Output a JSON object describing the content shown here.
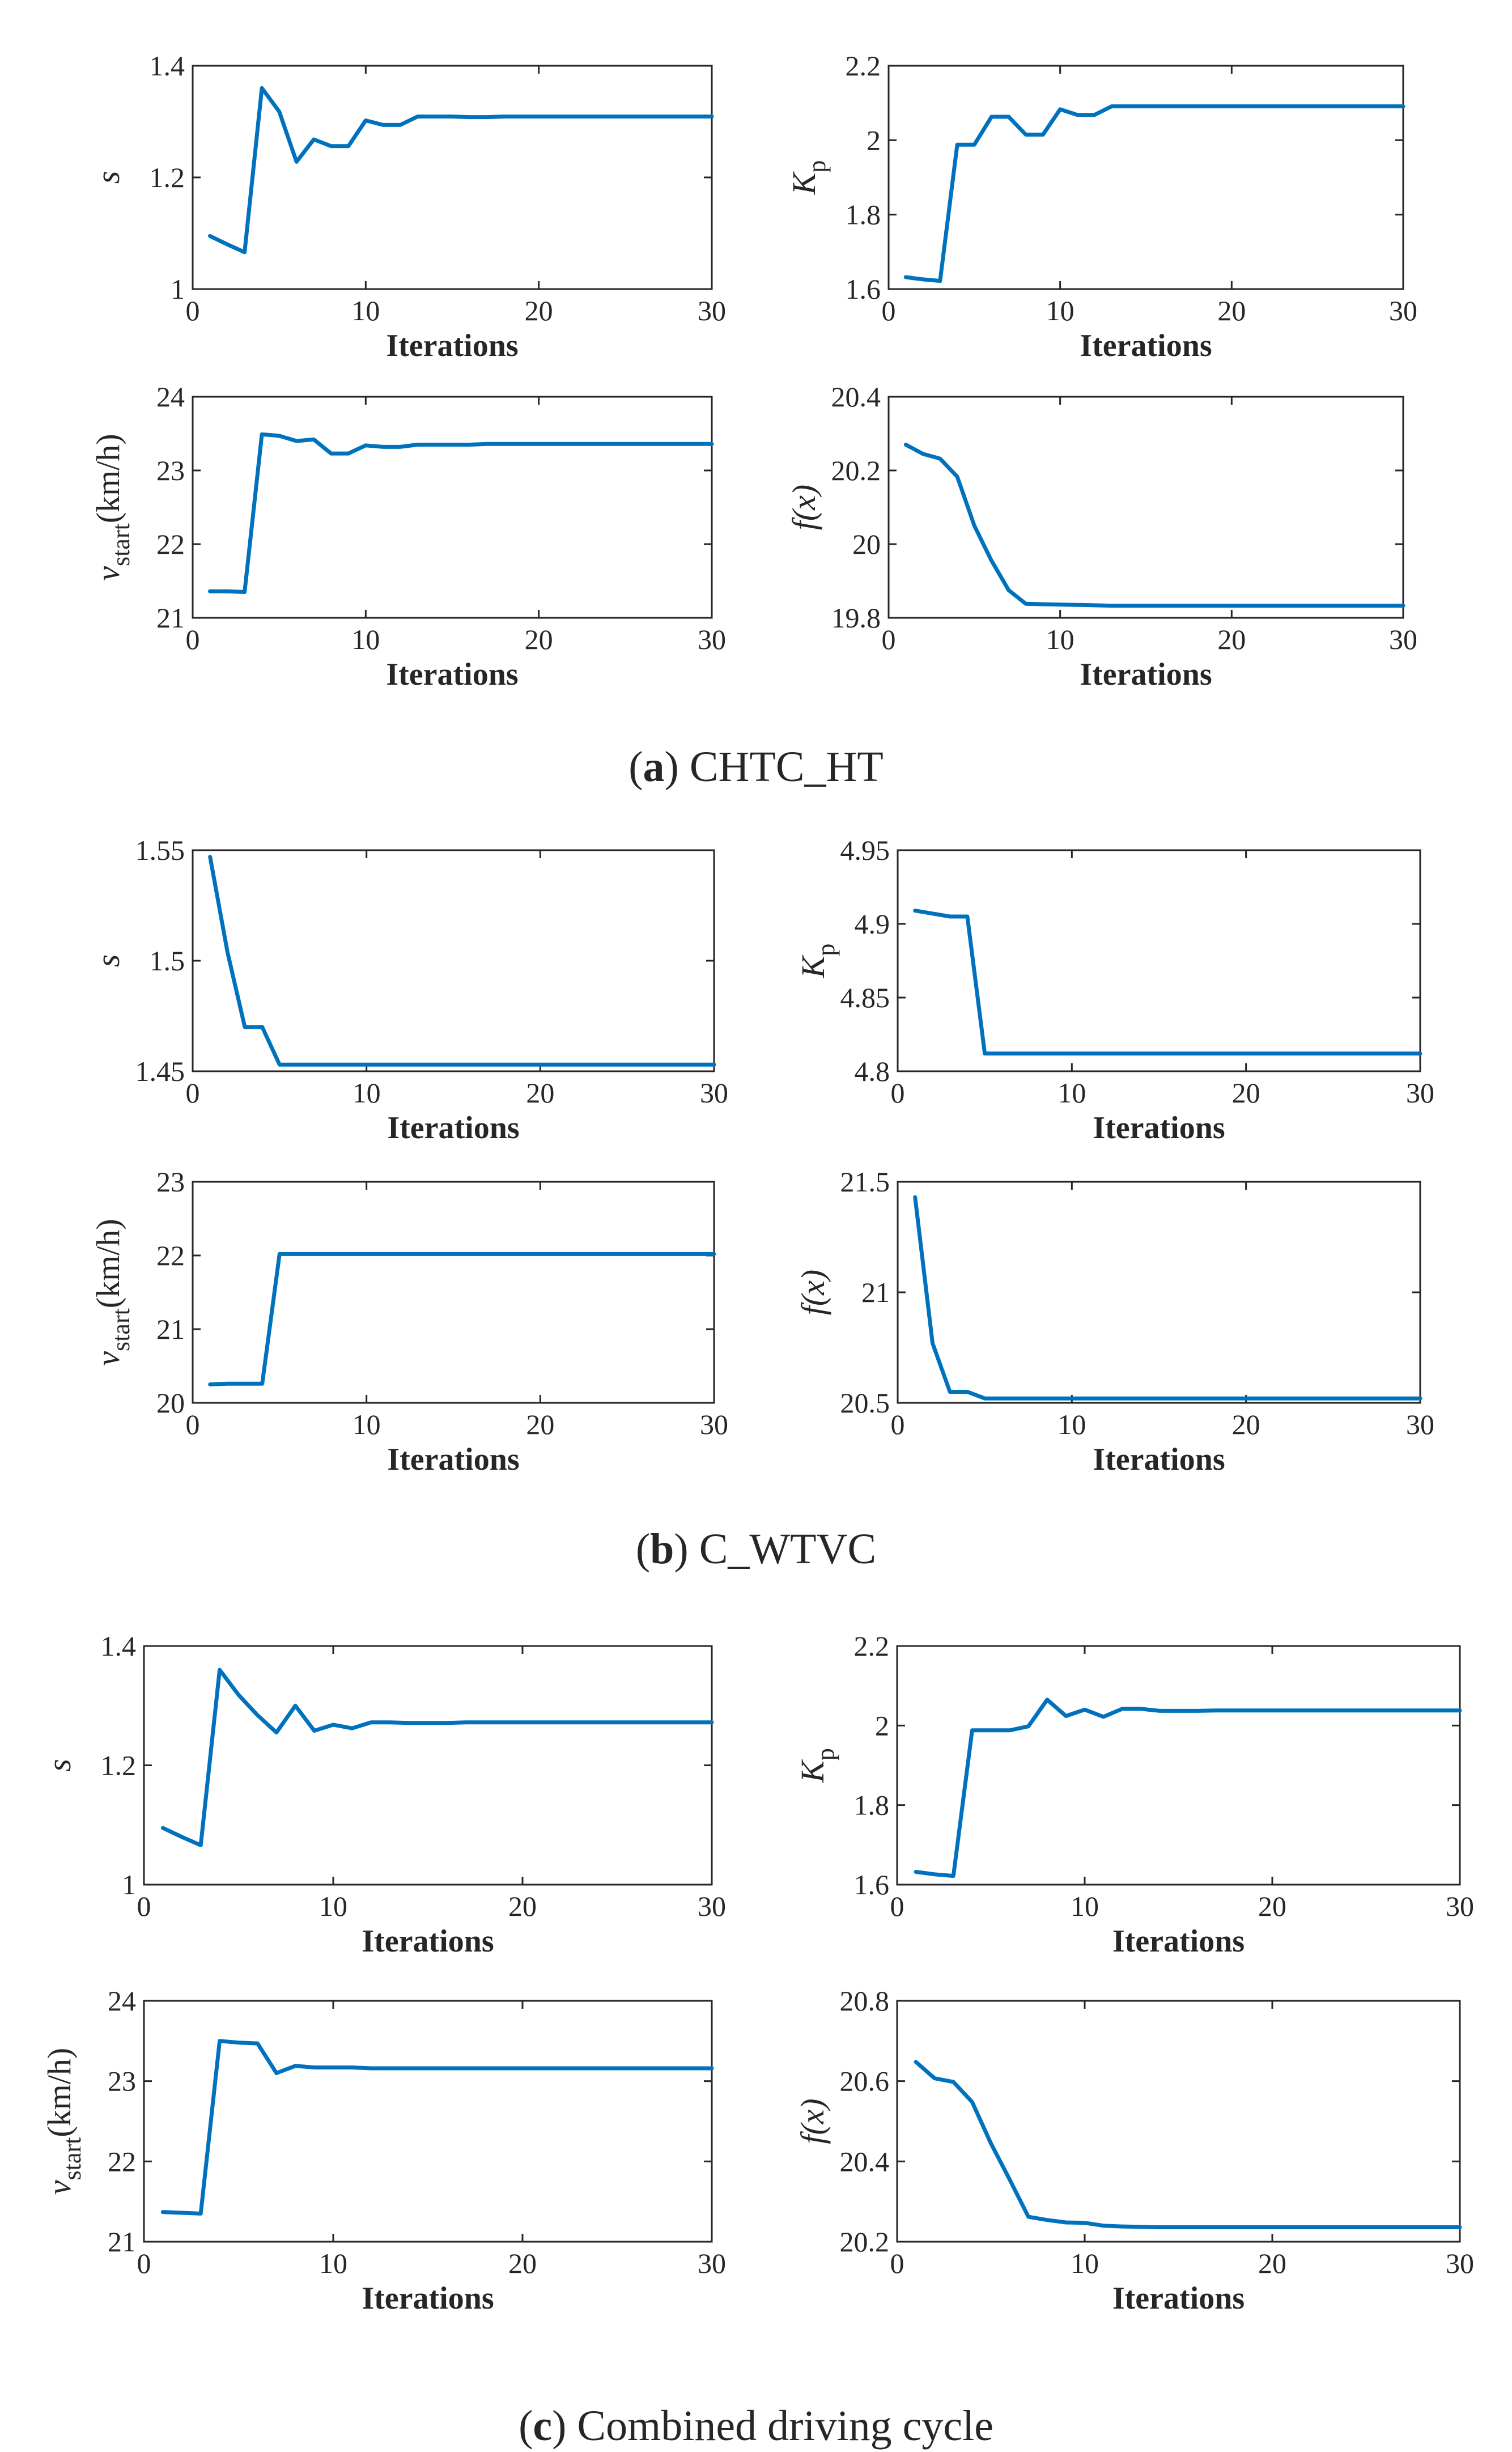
{
  "style": {
    "line_color": "#0072BD",
    "axis_color": "#262626"
  },
  "panels": [
    {
      "caption_letter": "a",
      "caption_rest": " CHTC_HT"
    },
    {
      "caption_letter": "b",
      "caption_rest": " C_WTVC"
    },
    {
      "caption_letter": "c",
      "caption_rest": " Combined driving cycle"
    }
  ],
  "chart_data": [
    {
      "type": "line",
      "panel": "a",
      "position": "top-left",
      "ylabel_parts": {
        "main": "s"
      },
      "xlabel": "Iterations",
      "xlim": [
        0,
        30
      ],
      "ylim": [
        1,
        1.4
      ],
      "xticks": [
        0,
        10,
        20,
        30
      ],
      "yticks": [
        1,
        1.2,
        1.4
      ],
      "ytick_labels": [
        "1",
        "1.2",
        "1.4"
      ],
      "x": [
        1,
        2,
        3,
        4,
        5,
        6,
        7,
        8,
        9,
        10,
        11,
        12,
        13,
        14,
        15,
        16,
        17,
        18,
        19,
        20,
        21,
        22,
        23,
        24,
        25,
        26,
        27,
        28,
        29,
        30
      ],
      "values": [
        1.095,
        1.08,
        1.066,
        1.36,
        1.318,
        1.228,
        1.268,
        1.256,
        1.256,
        1.302,
        1.294,
        1.294,
        1.309,
        1.309,
        1.309,
        1.308,
        1.308,
        1.309,
        1.309,
        1.309,
        1.309,
        1.309,
        1.309,
        1.309,
        1.309,
        1.309,
        1.309,
        1.309,
        1.309,
        1.309
      ]
    },
    {
      "type": "line",
      "panel": "a",
      "position": "top-right",
      "ylabel_parts": {
        "main": "K",
        "sub": "p"
      },
      "xlabel": "Iterations",
      "xlim": [
        0,
        30
      ],
      "ylim": [
        1.6,
        2.2
      ],
      "xticks": [
        0,
        10,
        20,
        30
      ],
      "yticks": [
        1.6,
        1.8,
        2,
        2.2
      ],
      "ytick_labels": [
        "1.6",
        "1.8",
        "2",
        "2.2"
      ],
      "x": [
        1,
        2,
        3,
        4,
        5,
        6,
        7,
        8,
        9,
        10,
        11,
        12,
        13,
        14,
        15,
        16,
        17,
        18,
        19,
        20,
        21,
        22,
        23,
        24,
        25,
        26,
        27,
        28,
        29,
        30
      ],
      "values": [
        1.632,
        1.626,
        1.622,
        1.988,
        1.988,
        2.063,
        2.063,
        2.015,
        2.015,
        2.083,
        2.068,
        2.068,
        2.091,
        2.091,
        2.091,
        2.091,
        2.091,
        2.091,
        2.091,
        2.091,
        2.091,
        2.091,
        2.091,
        2.091,
        2.091,
        2.091,
        2.091,
        2.091,
        2.091,
        2.091
      ]
    },
    {
      "type": "line",
      "panel": "a",
      "position": "bottom-left",
      "ylabel_parts": {
        "main": "v",
        "sub": "start",
        "unit": "(km/h)"
      },
      "xlabel": "Iterations",
      "xlim": [
        0,
        30
      ],
      "ylim": [
        21,
        24
      ],
      "xticks": [
        0,
        10,
        20,
        30
      ],
      "yticks": [
        21,
        22,
        23,
        24
      ],
      "ytick_labels": [
        "21",
        "22",
        "23",
        "24"
      ],
      "x": [
        1,
        2,
        3,
        4,
        5,
        6,
        7,
        8,
        9,
        10,
        11,
        12,
        13,
        14,
        15,
        16,
        17,
        18,
        19,
        20,
        21,
        22,
        23,
        24,
        25,
        26,
        27,
        28,
        29,
        30
      ],
      "values": [
        21.36,
        21.36,
        21.35,
        23.49,
        23.47,
        23.4,
        23.42,
        23.23,
        23.23,
        23.34,
        23.32,
        23.32,
        23.35,
        23.35,
        23.35,
        23.35,
        23.36,
        23.36,
        23.36,
        23.36,
        23.36,
        23.36,
        23.36,
        23.36,
        23.36,
        23.36,
        23.36,
        23.36,
        23.36,
        23.36
      ]
    },
    {
      "type": "line",
      "panel": "a",
      "position": "bottom-right",
      "ylabel_parts": {
        "main": "f(x)"
      },
      "xlabel": "Iterations",
      "xlim": [
        0,
        30
      ],
      "ylim": [
        19.8,
        20.4
      ],
      "xticks": [
        0,
        10,
        20,
        30
      ],
      "yticks": [
        19.8,
        20,
        20.2,
        20.4
      ],
      "ytick_labels": [
        "19.8",
        "20",
        "20.2",
        "20.4"
      ],
      "x": [
        1,
        2,
        3,
        4,
        5,
        6,
        7,
        8,
        9,
        10,
        11,
        12,
        13,
        14,
        15,
        16,
        17,
        18,
        19,
        20,
        21,
        22,
        23,
        24,
        25,
        26,
        27,
        28,
        29,
        30
      ],
      "values": [
        20.27,
        20.245,
        20.232,
        20.183,
        20.05,
        19.955,
        19.875,
        19.838,
        19.837,
        19.836,
        19.835,
        19.834,
        19.833,
        19.833,
        19.833,
        19.833,
        19.833,
        19.833,
        19.833,
        19.833,
        19.833,
        19.833,
        19.833,
        19.833,
        19.833,
        19.833,
        19.833,
        19.833,
        19.833,
        19.833
      ]
    },
    {
      "type": "line",
      "panel": "b",
      "position": "top-left",
      "ylabel_parts": {
        "main": "s"
      },
      "xlabel": "Iterations",
      "xlim": [
        0,
        30
      ],
      "ylim": [
        1.45,
        1.55
      ],
      "xticks": [
        0,
        10,
        20,
        30
      ],
      "yticks": [
        1.45,
        1.5,
        1.55
      ],
      "ytick_labels": [
        "1.45",
        "1.5",
        "1.55"
      ],
      "x": [
        1,
        2,
        3,
        4,
        5,
        6,
        7,
        8,
        9,
        10,
        11,
        12,
        13,
        14,
        15,
        16,
        17,
        18,
        19,
        20,
        21,
        22,
        23,
        24,
        25,
        26,
        27,
        28,
        29,
        30
      ],
      "values": [
        1.547,
        1.504,
        1.47,
        1.47,
        1.453,
        1.453,
        1.453,
        1.453,
        1.453,
        1.453,
        1.453,
        1.453,
        1.453,
        1.453,
        1.453,
        1.453,
        1.453,
        1.453,
        1.453,
        1.453,
        1.453,
        1.453,
        1.453,
        1.453,
        1.453,
        1.453,
        1.453,
        1.453,
        1.453,
        1.453
      ]
    },
    {
      "type": "line",
      "panel": "b",
      "position": "top-right",
      "ylabel_parts": {
        "main": "K",
        "sub": "p"
      },
      "xlabel": "Iterations",
      "xlim": [
        0,
        30
      ],
      "ylim": [
        4.8,
        4.95
      ],
      "xticks": [
        0,
        10,
        20,
        30
      ],
      "yticks": [
        4.8,
        4.85,
        4.9,
        4.95
      ],
      "ytick_labels": [
        "4.8",
        "4.85",
        "4.9",
        "4.95"
      ],
      "x": [
        1,
        2,
        3,
        4,
        5,
        6,
        7,
        8,
        9,
        10,
        11,
        12,
        13,
        14,
        15,
        16,
        17,
        18,
        19,
        20,
        21,
        22,
        23,
        24,
        25,
        26,
        27,
        28,
        29,
        30
      ],
      "values": [
        4.909,
        4.907,
        4.905,
        4.905,
        4.812,
        4.812,
        4.812,
        4.812,
        4.812,
        4.812,
        4.812,
        4.812,
        4.812,
        4.812,
        4.812,
        4.812,
        4.812,
        4.812,
        4.812,
        4.812,
        4.812,
        4.812,
        4.812,
        4.812,
        4.812,
        4.812,
        4.812,
        4.812,
        4.812,
        4.812
      ]
    },
    {
      "type": "line",
      "panel": "b",
      "position": "bottom-left",
      "ylabel_parts": {
        "main": "v",
        "sub": "start",
        "unit": "(km/h)"
      },
      "xlabel": "Iterations",
      "xlim": [
        0,
        30
      ],
      "ylim": [
        20,
        23
      ],
      "xticks": [
        0,
        10,
        20,
        30
      ],
      "yticks": [
        20,
        21,
        22,
        23
      ],
      "ytick_labels": [
        "20",
        "21",
        "22",
        "23"
      ],
      "x": [
        1,
        2,
        3,
        4,
        5,
        6,
        7,
        8,
        9,
        10,
        11,
        12,
        13,
        14,
        15,
        16,
        17,
        18,
        19,
        20,
        21,
        22,
        23,
        24,
        25,
        26,
        27,
        28,
        29,
        30
      ],
      "values": [
        20.25,
        20.26,
        20.26,
        20.26,
        22.02,
        22.02,
        22.02,
        22.02,
        22.02,
        22.02,
        22.02,
        22.02,
        22.02,
        22.02,
        22.02,
        22.02,
        22.02,
        22.02,
        22.02,
        22.02,
        22.02,
        22.02,
        22.02,
        22.02,
        22.02,
        22.02,
        22.02,
        22.02,
        22.02,
        22.02
      ]
    },
    {
      "type": "line",
      "panel": "b",
      "position": "bottom-right",
      "ylabel_parts": {
        "main": "f(x)"
      },
      "xlabel": "Iterations",
      "xlim": [
        0,
        30
      ],
      "ylim": [
        20.5,
        21.5
      ],
      "xticks": [
        0,
        10,
        20,
        30
      ],
      "yticks": [
        20.5,
        21,
        21.5
      ],
      "ytick_labels": [
        "20.5",
        "21",
        "21.5"
      ],
      "x": [
        1,
        2,
        3,
        4,
        5,
        6,
        7,
        8,
        9,
        10,
        11,
        12,
        13,
        14,
        15,
        16,
        17,
        18,
        19,
        20,
        21,
        22,
        23,
        24,
        25,
        26,
        27,
        28,
        29,
        30
      ],
      "values": [
        21.43,
        20.77,
        20.55,
        20.55,
        20.52,
        20.52,
        20.52,
        20.52,
        20.52,
        20.52,
        20.52,
        20.52,
        20.52,
        20.52,
        20.52,
        20.52,
        20.52,
        20.52,
        20.52,
        20.52,
        20.52,
        20.52,
        20.52,
        20.52,
        20.52,
        20.52,
        20.52,
        20.52,
        20.52,
        20.52
      ]
    },
    {
      "type": "line",
      "panel": "c",
      "position": "top-left",
      "ylabel_parts": {
        "main": "s"
      },
      "xlabel": "Iterations",
      "xlim": [
        0,
        30
      ],
      "ylim": [
        1,
        1.4
      ],
      "xticks": [
        0,
        10,
        20,
        30
      ],
      "yticks": [
        1,
        1.2,
        1.4
      ],
      "ytick_labels": [
        "1",
        "1.2",
        "1.4"
      ],
      "x": [
        1,
        2,
        3,
        4,
        5,
        6,
        7,
        8,
        9,
        10,
        11,
        12,
        13,
        14,
        15,
        16,
        17,
        18,
        19,
        20,
        21,
        22,
        23,
        24,
        25,
        26,
        27,
        28,
        29,
        30
      ],
      "values": [
        1.095,
        1.08,
        1.066,
        1.36,
        1.318,
        1.284,
        1.255,
        1.3,
        1.258,
        1.268,
        1.262,
        1.272,
        1.272,
        1.271,
        1.271,
        1.271,
        1.272,
        1.272,
        1.272,
        1.272,
        1.272,
        1.272,
        1.272,
        1.272,
        1.272,
        1.272,
        1.272,
        1.272,
        1.272,
        1.272
      ]
    },
    {
      "type": "line",
      "panel": "c",
      "position": "top-right",
      "ylabel_parts": {
        "main": "K",
        "sub": "p"
      },
      "xlabel": "Iterations",
      "xlim": [
        0,
        30
      ],
      "ylim": [
        1.6,
        2.2
      ],
      "xticks": [
        0,
        10,
        20,
        30
      ],
      "yticks": [
        1.6,
        1.8,
        2,
        2.2
      ],
      "ytick_labels": [
        "1.6",
        "1.8",
        "2",
        "2.2"
      ],
      "x": [
        1,
        2,
        3,
        4,
        5,
        6,
        7,
        8,
        9,
        10,
        11,
        12,
        13,
        14,
        15,
        16,
        17,
        18,
        19,
        20,
        21,
        22,
        23,
        24,
        25,
        26,
        27,
        28,
        29,
        30
      ],
      "values": [
        1.632,
        1.626,
        1.622,
        1.988,
        1.988,
        1.988,
        1.998,
        2.065,
        2.024,
        2.04,
        2.022,
        2.042,
        2.042,
        2.037,
        2.037,
        2.037,
        2.038,
        2.038,
        2.038,
        2.038,
        2.038,
        2.038,
        2.038,
        2.038,
        2.038,
        2.038,
        2.038,
        2.038,
        2.038,
        2.038
      ]
    },
    {
      "type": "line",
      "panel": "c",
      "position": "bottom-left",
      "ylabel_parts": {
        "main": "v",
        "sub": "start",
        "unit": "(km/h)"
      },
      "xlabel": "Iterations",
      "xlim": [
        0,
        30
      ],
      "ylim": [
        21,
        24
      ],
      "xticks": [
        0,
        10,
        20,
        30
      ],
      "yticks": [
        21,
        22,
        23,
        24
      ],
      "ytick_labels": [
        "21",
        "22",
        "23",
        "24"
      ],
      "x": [
        1,
        2,
        3,
        4,
        5,
        6,
        7,
        8,
        9,
        10,
        11,
        12,
        13,
        14,
        15,
        16,
        17,
        18,
        19,
        20,
        21,
        22,
        23,
        24,
        25,
        26,
        27,
        28,
        29,
        30
      ],
      "values": [
        21.37,
        21.36,
        21.35,
        23.5,
        23.48,
        23.47,
        23.1,
        23.19,
        23.17,
        23.17,
        23.17,
        23.16,
        23.16,
        23.16,
        23.16,
        23.16,
        23.16,
        23.16,
        23.16,
        23.16,
        23.16,
        23.16,
        23.16,
        23.16,
        23.16,
        23.16,
        23.16,
        23.16,
        23.16,
        23.16
      ]
    },
    {
      "type": "line",
      "panel": "c",
      "position": "bottom-right",
      "ylabel_parts": {
        "main": "f(x)"
      },
      "xlabel": "Iterations",
      "xlim": [
        0,
        30
      ],
      "ylim": [
        20.2,
        20.8
      ],
      "xticks": [
        0,
        10,
        20,
        30
      ],
      "yticks": [
        20.2,
        20.4,
        20.6,
        20.8
      ],
      "ytick_labels": [
        "20.2",
        "20.4",
        "20.6",
        "20.8"
      ],
      "x": [
        1,
        2,
        3,
        4,
        5,
        6,
        7,
        8,
        9,
        10,
        11,
        12,
        13,
        14,
        15,
        16,
        17,
        18,
        19,
        20,
        21,
        22,
        23,
        24,
        25,
        26,
        27,
        28,
        29,
        30
      ],
      "values": [
        20.648,
        20.607,
        20.598,
        20.548,
        20.445,
        20.355,
        20.262,
        20.254,
        20.248,
        20.247,
        20.24,
        20.238,
        20.237,
        20.236,
        20.236,
        20.236,
        20.236,
        20.236,
        20.236,
        20.236,
        20.236,
        20.236,
        20.236,
        20.236,
        20.236,
        20.236,
        20.236,
        20.236,
        20.236,
        20.236
      ]
    }
  ]
}
